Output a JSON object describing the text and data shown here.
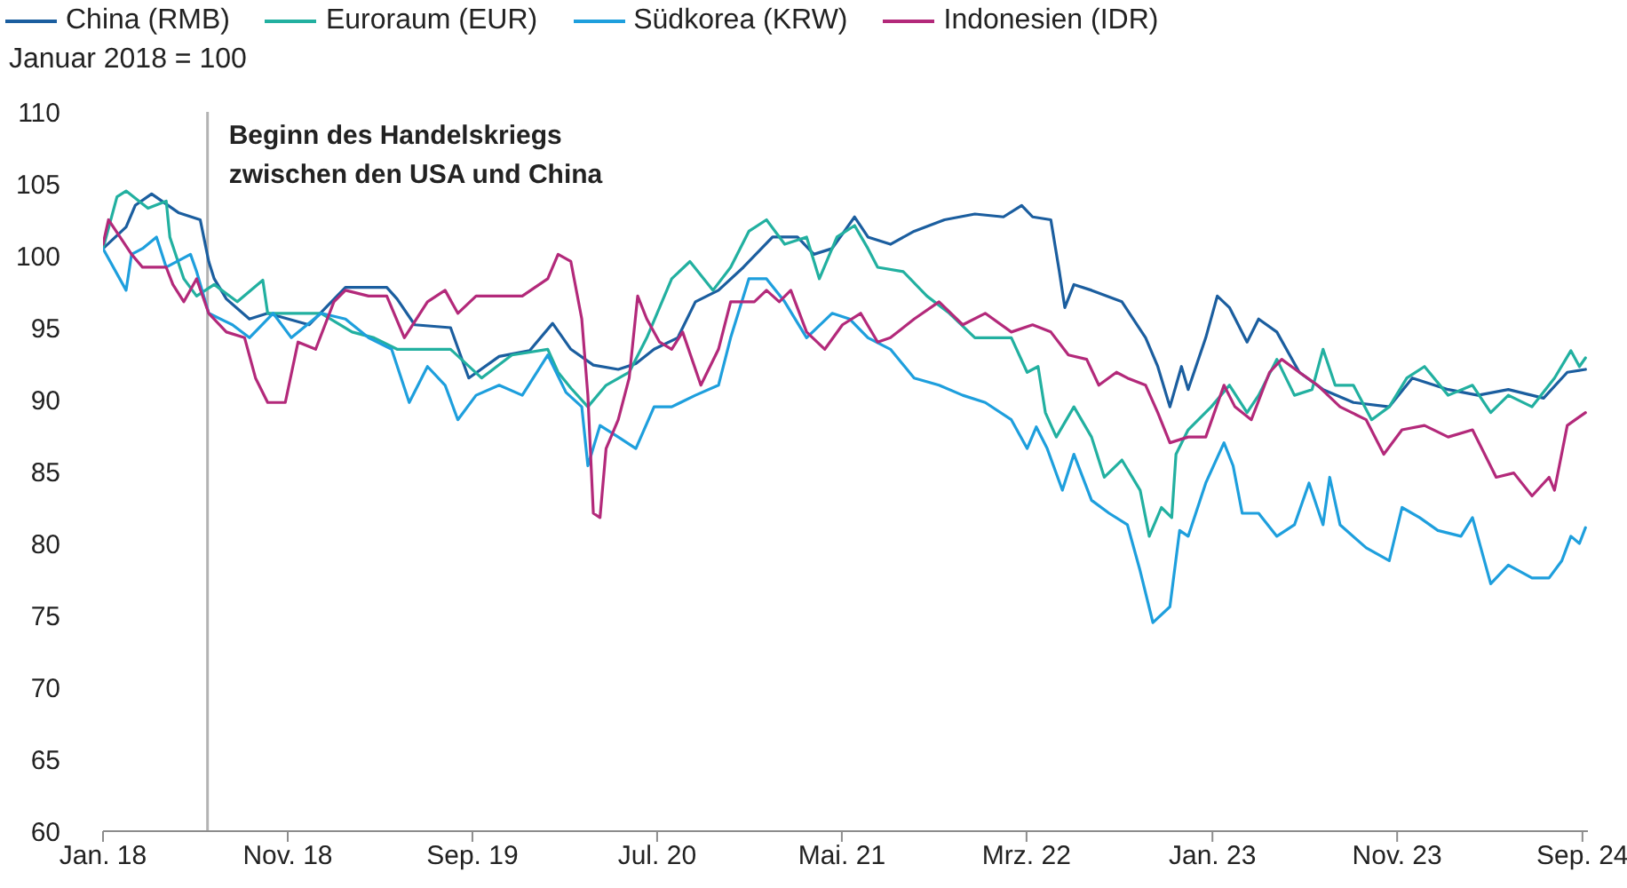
{
  "chart_data": {
    "type": "line",
    "ylabel": "Januar 2018 = 100",
    "legend": "top left",
    "ylim": [
      60,
      110
    ],
    "yticks": [
      60,
      65,
      70,
      75,
      80,
      85,
      90,
      95,
      100,
      105,
      110
    ],
    "xlim": [
      "2018-01-01",
      "2024-09-10"
    ],
    "xticks": [
      {
        "value": "2018-01",
        "label": "Jan. 18"
      },
      {
        "value": "2018-11",
        "label": "Nov. 18"
      },
      {
        "value": "2019-09",
        "label": "Sep. 19"
      },
      {
        "value": "2020-07",
        "label": "Jul. 20"
      },
      {
        "value": "2021-05",
        "label": "Mai. 21"
      },
      {
        "value": "2022-03",
        "label": "Mrz. 22"
      },
      {
        "value": "2023-01",
        "label": "Jan. 23"
      },
      {
        "value": "2023-11",
        "label": "Nov. 23"
      },
      {
        "value": "2024-09",
        "label": "Sep. 24"
      }
    ],
    "ref_lines": [
      {
        "axis": "x",
        "value": "2018-06-22",
        "label": "Beginn des Handelskriegs\nzwischen den USA und China",
        "color": "#b3b3b3"
      }
    ],
    "series": [
      {
        "name": "China (RMB)",
        "color": "#1b5e9f",
        "x": [
          "2018-01-01",
          "2018-02-08",
          "2018-02-23",
          "2018-03-22",
          "2018-05-05",
          "2018-06-10",
          "2018-06-24",
          "2018-07-03",
          "2018-07-23",
          "2018-08-30",
          "2018-09-29",
          "2018-12-06",
          "2019-02-04",
          "2019-04-13",
          "2019-04-30",
          "2019-05-29",
          "2019-07-27",
          "2019-08-26",
          "2019-10-15",
          "2019-12-04",
          "2020-01-11",
          "2020-02-10",
          "2020-03-18",
          "2020-04-28",
          "2020-05-27",
          "2020-06-26",
          "2020-08-04",
          "2020-09-02",
          "2020-10-10",
          "2020-11-20",
          "2021-01-07",
          "2021-02-17",
          "2021-03-16",
          "2021-04-15",
          "2021-05-22",
          "2021-06-13",
          "2021-07-20",
          "2021-08-28",
          "2021-10-17",
          "2021-12-06",
          "2022-01-22",
          "2022-02-21",
          "2022-03-11",
          "2022-04-10",
          "2022-04-24",
          "2022-05-03",
          "2022-05-18",
          "2022-06-16",
          "2022-08-05",
          "2022-09-13",
          "2022-10-03",
          "2022-10-23",
          "2022-11-11",
          "2022-11-22",
          "2022-12-21",
          "2023-01-09",
          "2023-01-29",
          "2023-02-27",
          "2023-03-18",
          "2023-04-17",
          "2023-05-24",
          "2023-07-02",
          "2023-08-21",
          "2023-10-19",
          "2023-11-26",
          "2024-01-24",
          "2024-03-13",
          "2024-05-02",
          "2024-06-29",
          "2024-08-07",
          "2024-09-06"
        ],
        "values": [
          100.5,
          102,
          103.5,
          104.3,
          103,
          102.5,
          99.6,
          98.4,
          97,
          95.6,
          96,
          95.2,
          97.8,
          97.8,
          97,
          95.2,
          95,
          91.5,
          93,
          93.4,
          95.3,
          93.5,
          92.4,
          92.1,
          92.5,
          93.5,
          94.3,
          96.8,
          97.6,
          99.2,
          101.3,
          101.3,
          100.1,
          100.5,
          102.7,
          101.3,
          100.8,
          101.7,
          102.5,
          102.9,
          102.7,
          103.5,
          102.7,
          102.5,
          98.9,
          96.4,
          98,
          97.6,
          96.8,
          94.3,
          92.3,
          89.5,
          92.3,
          90.7,
          94.3,
          97.2,
          96.4,
          94,
          95.6,
          94.7,
          91.9,
          90.7,
          89.8,
          89.5,
          91.5,
          90.7,
          90.3,
          90.7,
          90.1,
          91.9,
          92.1
        ]
      },
      {
        "name": "Euroraum (EUR)",
        "color": "#22b0a0",
        "x": [
          "2018-01-01",
          "2018-01-24",
          "2018-02-08",
          "2018-03-16",
          "2018-04-15",
          "2018-04-21",
          "2018-05-14",
          "2018-06-04",
          "2018-07-03",
          "2018-08-10",
          "2018-09-21",
          "2018-09-29",
          "2018-11-18",
          "2018-12-26",
          "2019-02-15",
          "2019-03-23",
          "2019-04-30",
          "2019-06-11",
          "2019-07-27",
          "2019-09-16",
          "2019-11-05",
          "2020-01-03",
          "2020-01-20",
          "2020-02-10",
          "2020-03-09",
          "2020-04-08",
          "2020-05-16",
          "2020-06-14",
          "2020-07-25",
          "2020-08-24",
          "2020-10-01",
          "2020-10-30",
          "2020-11-29",
          "2020-12-28",
          "2021-01-27",
          "2021-03-04",
          "2021-03-25",
          "2021-04-23",
          "2021-05-22",
          "2021-06-13",
          "2021-06-29",
          "2021-08-10",
          "2021-09-18",
          "2021-10-25",
          "2021-12-06",
          "2022-02-04",
          "2022-03-02",
          "2022-03-20",
          "2022-04-01",
          "2022-04-19",
          "2022-05-18",
          "2022-06-16",
          "2022-07-07",
          "2022-08-05",
          "2022-09-04",
          "2022-09-19",
          "2022-10-09",
          "2022-10-26",
          "2022-11-02",
          "2022-11-22",
          "2022-12-30",
          "2023-01-29",
          "2023-02-27",
          "2023-03-18",
          "2023-04-17",
          "2023-05-16",
          "2023-06-14",
          "2023-07-02",
          "2023-07-22",
          "2023-08-21",
          "2023-09-20",
          "2023-10-19",
          "2023-11-17",
          "2023-12-16",
          "2024-01-24",
          "2024-03-04",
          "2024-04-03",
          "2024-05-02",
          "2024-06-10",
          "2024-07-17",
          "2024-08-13",
          "2024-08-27",
          "2024-09-06"
        ],
        "values": [
          100.5,
          104.1,
          104.5,
          103.3,
          103.8,
          101.3,
          98.4,
          97.2,
          98,
          96.8,
          98.3,
          96,
          96,
          96,
          94.7,
          94.3,
          93.5,
          93.5,
          93.5,
          91.5,
          93.1,
          93.5,
          91.9,
          90.8,
          89.5,
          91,
          91.9,
          94.3,
          98.4,
          99.6,
          97.6,
          99.2,
          101.7,
          102.5,
          100.8,
          101.3,
          98.4,
          101.3,
          102.1,
          100.5,
          99.2,
          98.9,
          97.2,
          96,
          94.3,
          94.3,
          91.9,
          92.3,
          89.1,
          87.4,
          89.5,
          87.4,
          84.6,
          85.8,
          83.7,
          80.5,
          82.5,
          81.8,
          86.2,
          87.9,
          89.5,
          91,
          89.1,
          90.3,
          92.8,
          90.3,
          90.7,
          93.5,
          91,
          91,
          88.6,
          89.5,
          91.5,
          92.3,
          90.3,
          91,
          89.1,
          90.3,
          89.5,
          91.5,
          93.4,
          92.3,
          92.9
        ]
      },
      {
        "name": "Südkorea (KRW)",
        "color": "#1e9fdd",
        "x": [
          "2018-01-01",
          "2018-02-08",
          "2018-02-17",
          "2018-03-07",
          "2018-03-30",
          "2018-04-15",
          "2018-05-25",
          "2018-06-04",
          "2018-06-24",
          "2018-08-02",
          "2018-08-30",
          "2018-10-08",
          "2018-11-07",
          "2018-12-26",
          "2019-02-04",
          "2019-03-14",
          "2019-04-21",
          "2019-05-20",
          "2019-06-19",
          "2019-07-18",
          "2019-08-08",
          "2019-09-07",
          "2019-10-15",
          "2019-11-22",
          "2020-01-03",
          "2020-02-02",
          "2020-02-28",
          "2020-03-09",
          "2020-03-29",
          "2020-04-28",
          "2020-05-27",
          "2020-06-26",
          "2020-07-25",
          "2020-09-02",
          "2020-10-10",
          "2020-10-30",
          "2020-11-29",
          "2020-12-28",
          "2021-01-27",
          "2021-03-04",
          "2021-04-15",
          "2021-05-14",
          "2021-06-13",
          "2021-07-20",
          "2021-08-28",
          "2021-10-08",
          "2021-11-16",
          "2021-12-23",
          "2022-02-04",
          "2022-03-02",
          "2022-03-17",
          "2022-04-04",
          "2022-04-29",
          "2022-05-18",
          "2022-06-16",
          "2022-07-15",
          "2022-08-14",
          "2022-09-04",
          "2022-09-25",
          "2022-10-23",
          "2022-11-08",
          "2022-11-22",
          "2022-12-21",
          "2023-01-20",
          "2023-02-04",
          "2023-02-19",
          "2023-03-18",
          "2023-04-17",
          "2023-05-16",
          "2023-06-09",
          "2023-07-02",
          "2023-07-13",
          "2023-07-30",
          "2023-09-11",
          "2023-10-19",
          "2023-11-09",
          "2023-12-08",
          "2024-01-07",
          "2024-02-14",
          "2024-03-04",
          "2024-04-03",
          "2024-05-02",
          "2024-06-10",
          "2024-07-08",
          "2024-07-29",
          "2024-08-13",
          "2024-08-27",
          "2024-09-06"
        ],
        "values": [
          100.5,
          97.6,
          100.1,
          100.5,
          101.3,
          99.2,
          100.1,
          98.9,
          96,
          95.2,
          94.3,
          96,
          94.3,
          96,
          95.6,
          94.3,
          93.5,
          89.8,
          92.3,
          91,
          88.6,
          90.3,
          91,
          90.3,
          93.1,
          90.5,
          89.5,
          85.4,
          88.2,
          87.4,
          86.6,
          89.5,
          89.5,
          90.3,
          91,
          94.3,
          98.4,
          98.4,
          96.8,
          94.3,
          96,
          95.6,
          94.3,
          93.5,
          91.5,
          91,
          90.3,
          89.8,
          88.6,
          86.6,
          88.1,
          86.6,
          83.7,
          86.2,
          83,
          82.1,
          81.3,
          78.1,
          74.5,
          75.6,
          80.9,
          80.5,
          84.2,
          87,
          85.4,
          82.1,
          82.1,
          80.5,
          81.3,
          84.2,
          81.3,
          84.6,
          81.3,
          79.7,
          78.8,
          82.5,
          81.8,
          80.9,
          80.5,
          81.8,
          77.2,
          78.5,
          77.6,
          77.6,
          78.8,
          80.5,
          80,
          81.1
        ]
      },
      {
        "name": "Indonesien (IDR)",
        "color": "#b3297a",
        "x": [
          "2018-01-01",
          "2018-01-10",
          "2018-01-29",
          "2018-02-17",
          "2018-03-07",
          "2018-04-15",
          "2018-04-26",
          "2018-05-14",
          "2018-06-04",
          "2018-06-24",
          "2018-07-23",
          "2018-08-22",
          "2018-09-09",
          "2018-09-29",
          "2018-10-28",
          "2018-11-18",
          "2018-12-17",
          "2019-01-16",
          "2019-02-04",
          "2019-03-14",
          "2019-04-13",
          "2019-05-12",
          "2019-06-19",
          "2019-07-18",
          "2019-08-08",
          "2019-09-07",
          "2019-10-15",
          "2019-11-22",
          "2020-01-03",
          "2020-01-20",
          "2020-02-10",
          "2020-02-28",
          "2020-03-09",
          "2020-03-18",
          "2020-03-29",
          "2020-04-08",
          "2020-04-28",
          "2020-05-16",
          "2020-05-30",
          "2020-06-14",
          "2020-07-05",
          "2020-07-25",
          "2020-08-12",
          "2020-09-11",
          "2020-10-10",
          "2020-10-30",
          "2020-12-08",
          "2020-12-28",
          "2021-01-18",
          "2021-02-06",
          "2021-03-04",
          "2021-04-03",
          "2021-05-02",
          "2021-06-01",
          "2021-06-29",
          "2021-07-20",
          "2021-08-28",
          "2021-10-08",
          "2021-11-16",
          "2021-12-23",
          "2022-02-04",
          "2022-03-11",
          "2022-04-10",
          "2022-05-09",
          "2022-06-08",
          "2022-06-28",
          "2022-07-27",
          "2022-08-14",
          "2022-09-13",
          "2022-10-03",
          "2022-10-23",
          "2022-11-22",
          "2022-12-21",
          "2023-01-20",
          "2023-02-07",
          "2023-03-06",
          "2023-04-05",
          "2023-04-25",
          "2023-05-24",
          "2023-06-23",
          "2023-07-30",
          "2023-09-11",
          "2023-10-10",
          "2023-11-09",
          "2023-12-16",
          "2024-01-24",
          "2024-03-04",
          "2024-04-12",
          "2024-05-11",
          "2024-06-10",
          "2024-07-08",
          "2024-07-17",
          "2024-08-07",
          "2024-09-06"
        ],
        "values": [
          100.8,
          102.5,
          101.3,
          100.1,
          99.2,
          99.2,
          98,
          96.8,
          98.4,
          96,
          94.7,
          94.3,
          91.5,
          89.8,
          89.8,
          94,
          93.5,
          96.8,
          97.6,
          97.2,
          97.2,
          94.3,
          96.8,
          97.6,
          96,
          97.2,
          97.2,
          97.2,
          98.4,
          100.1,
          99.6,
          95.6,
          90.3,
          82.1,
          81.8,
          86.6,
          88.6,
          91.5,
          97.2,
          95.6,
          94,
          93.5,
          94.7,
          91,
          93.5,
          96.8,
          96.8,
          97.6,
          96.8,
          97.6,
          94.7,
          93.5,
          95.2,
          96,
          94,
          94.3,
          95.6,
          96.8,
          95.2,
          96,
          94.7,
          95.2,
          94.7,
          93.1,
          92.8,
          91,
          91.9,
          91.5,
          91,
          89.1,
          87,
          87.4,
          87.4,
          91,
          89.5,
          88.6,
          91.9,
          92.8,
          91.9,
          91,
          89.5,
          88.6,
          86.2,
          87.9,
          88.2,
          87.4,
          87.9,
          84.6,
          84.9,
          83.3,
          84.6,
          83.7,
          88.2,
          89.1
        ]
      }
    ]
  }
}
